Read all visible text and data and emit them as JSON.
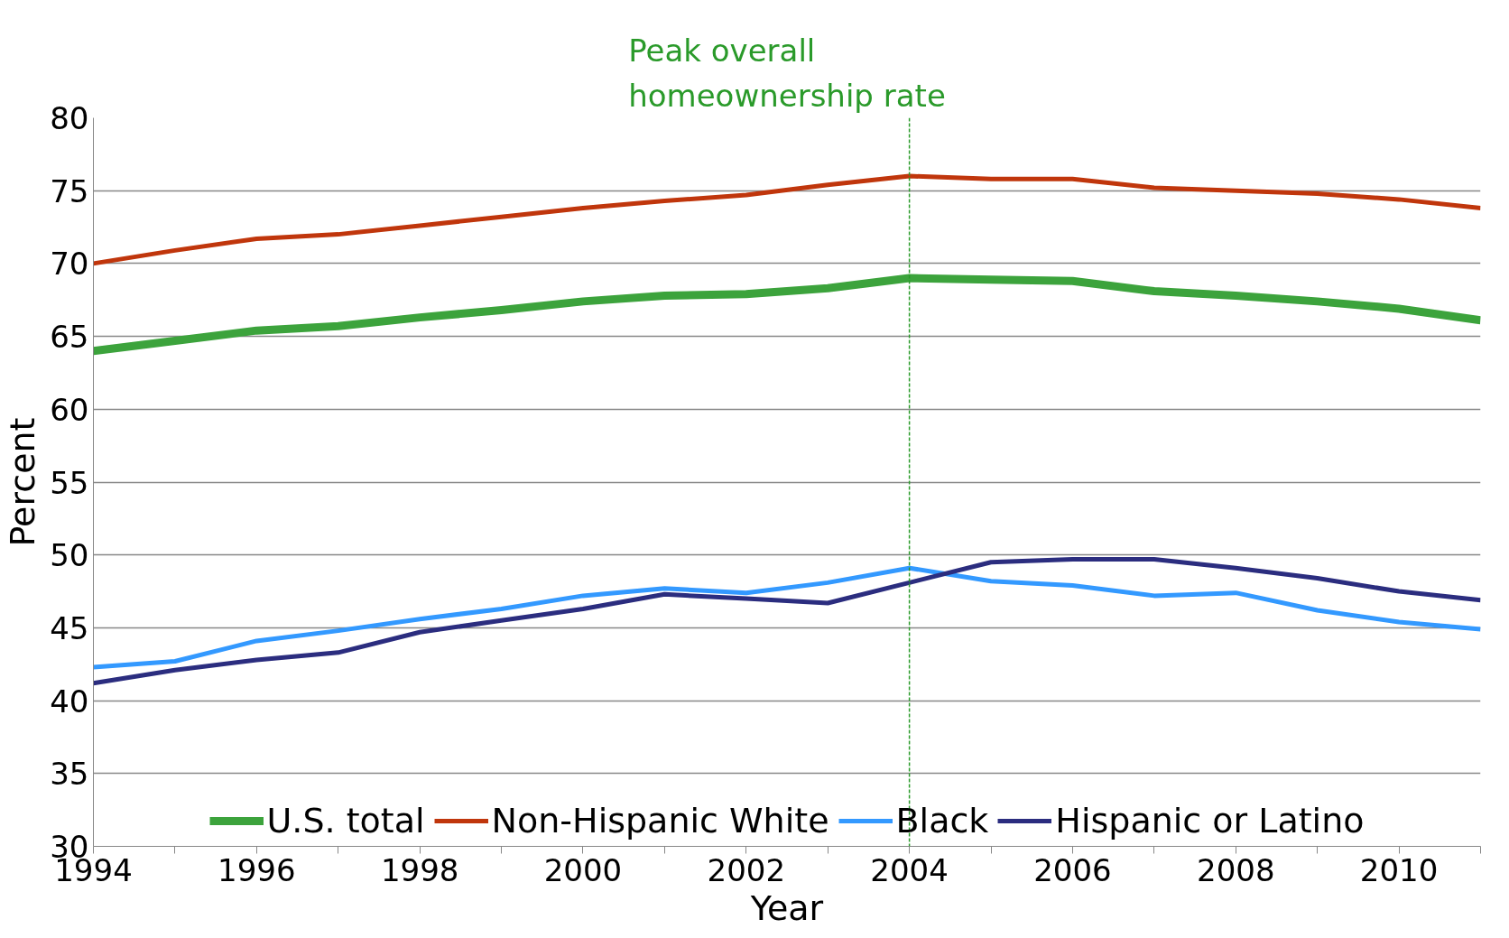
{
  "chart_data": {
    "type": "line",
    "xlabel": "Year",
    "ylabel": "Percent",
    "x": [
      1994,
      1995,
      1996,
      1997,
      1998,
      1999,
      2000,
      2001,
      2002,
      2003,
      2004,
      2005,
      2006,
      2007,
      2008,
      2009,
      2010,
      2011
    ],
    "series": [
      {
        "name": "U.S. total",
        "color": "#3ca33c",
        "values": [
          64.0,
          64.7,
          65.4,
          65.7,
          66.3,
          66.8,
          67.4,
          67.8,
          67.9,
          68.3,
          69.0,
          68.9,
          68.8,
          68.1,
          67.8,
          67.4,
          66.9,
          66.1
        ]
      },
      {
        "name": "Non-Hispanic White",
        "color": "#c0360c",
        "values": [
          70.0,
          70.9,
          71.7,
          72.0,
          72.6,
          73.2,
          73.8,
          74.3,
          74.7,
          75.4,
          76.0,
          75.8,
          75.8,
          75.2,
          75.0,
          74.8,
          74.4,
          73.8
        ]
      },
      {
        "name": "Black",
        "color": "#3399ff",
        "values": [
          42.3,
          42.7,
          44.1,
          44.8,
          45.6,
          46.3,
          47.2,
          47.7,
          47.4,
          48.1,
          49.1,
          48.2,
          47.9,
          47.2,
          47.4,
          46.2,
          45.4,
          44.9
        ]
      },
      {
        "name": "Hispanic or Latino",
        "color": "#2b2d7f",
        "values": [
          41.2,
          42.1,
          42.8,
          43.3,
          44.7,
          45.5,
          46.3,
          47.3,
          47.0,
          46.7,
          48.1,
          49.5,
          49.7,
          49.7,
          49.1,
          48.4,
          47.5,
          46.9
        ]
      }
    ],
    "xlim": [
      1994,
      2011
    ],
    "xticks": [
      1994,
      {
        "value": 1995,
        "label": null
      },
      1996,
      {
        "value": 1997,
        "label": null
      },
      1998,
      {
        "value": 1999,
        "label": null
      },
      2000,
      {
        "value": 2001,
        "label": null
      },
      2002,
      {
        "value": 2003,
        "label": null
      },
      2004,
      {
        "value": 2005,
        "label": null
      },
      2006,
      {
        "value": 2007,
        "label": null
      },
      2008,
      {
        "value": 2009,
        "label": null
      },
      2010,
      {
        "value": 2011,
        "label": null
      }
    ],
    "ylim": [
      30,
      80
    ],
    "yticks": [
      30,
      35,
      40,
      45,
      50,
      55,
      60,
      65,
      70,
      75,
      80
    ],
    "grid": "y",
    "legend": "bottom",
    "marker": "none",
    "line_style": "solid",
    "ref_lines": [
      {
        "axis": "x",
        "value": 2004,
        "label": "Peak overall\nhomeownership rate",
        "color": "#2a9a2a",
        "line_style": "dashed"
      }
    ]
  }
}
